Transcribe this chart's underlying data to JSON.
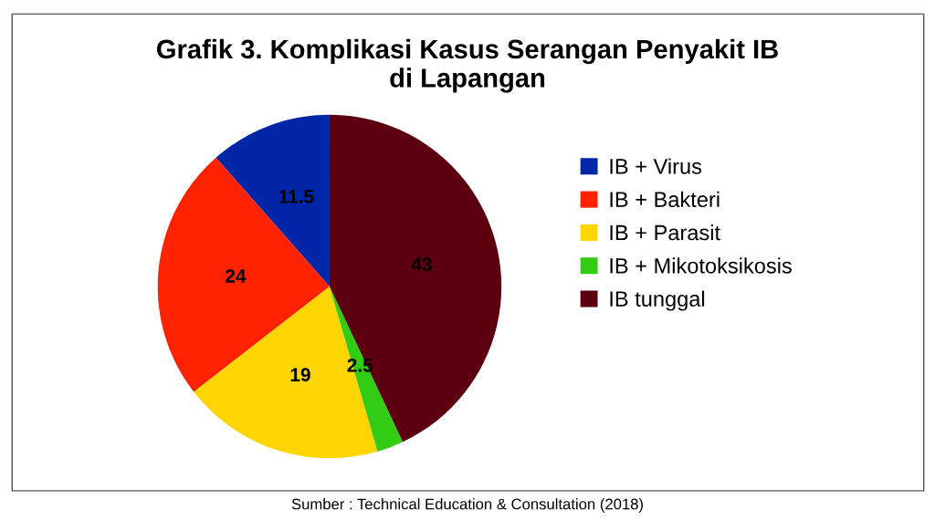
{
  "chart_data": {
    "type": "pie",
    "title": "Grafik 3. Komplikasi Kasus Serangan Penyakit IB\ndi Lapangan",
    "categories": [
      "IB + Virus",
      "IB + Bakteri",
      "IB + Parasit",
      "IB + Mikotoksikosis",
      "IB tunggal"
    ],
    "values": [
      11.5,
      24,
      19,
      2.5,
      43
    ],
    "colors": [
      "#0026a8",
      "#ff2200",
      "#ffd500",
      "#33cc14",
      "#5c0010"
    ],
    "data_labels": true,
    "legend": "right",
    "annotations": [
      "Sumber : Technical Education & Consultation (2018)"
    ]
  }
}
